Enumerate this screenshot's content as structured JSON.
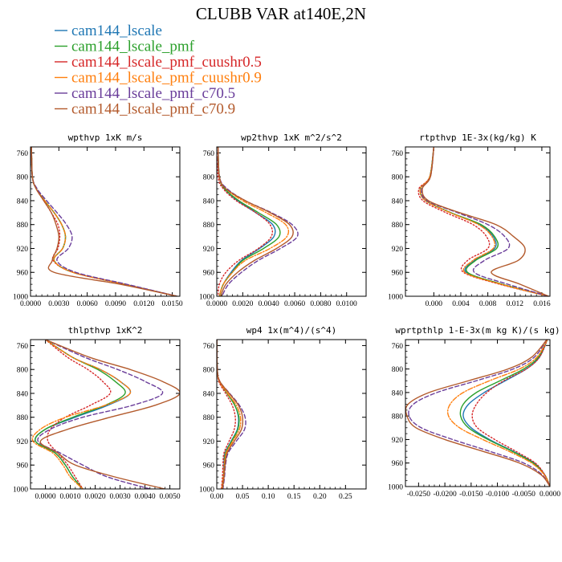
{
  "figure": {
    "title": "CLUBB VAR at140E,2N"
  },
  "legend": [
    {
      "name": "cam144_lscale",
      "color": "#1f77b4",
      "dash": "solid"
    },
    {
      "name": "cam144_lscale_pmf",
      "color": "#2ca02c",
      "dash": "solid"
    },
    {
      "name": "cam144_lscale_pmf_cuushr0.5",
      "color": "#d62728",
      "dash": "dot"
    },
    {
      "name": "cam144_lscale_pmf_cuushr0.9",
      "color": "#ff7f0e",
      "dash": "dashdot"
    },
    {
      "name": "cam144_lscale_pmf_c70.5",
      "color": "#6a3d9a",
      "dash": "dash"
    },
    {
      "name": "cam144_lscale_pmf_c70.9",
      "color": "#b35a2c",
      "dash": "solid"
    }
  ],
  "chart_data": [
    {
      "type": "line",
      "title": "wpthvp  1xK m/s",
      "xlim": [
        0,
        0.0158
      ],
      "ylim": [
        1000,
        750
      ],
      "xticks": [
        0.0,
        0.003,
        0.006,
        0.009,
        0.012,
        0.015
      ],
      "xtick_labels": [
        "0.0000",
        "0.0030",
        "0.0060",
        "0.0090",
        "0.0120",
        "0.0150"
      ],
      "yticks": [
        760,
        800,
        840,
        880,
        920,
        960,
        1000
      ],
      "y": [
        750,
        800,
        820,
        840,
        860,
        880,
        900,
        920,
        940,
        960,
        980,
        1000
      ],
      "series": [
        {
          "name": "cam144_lscale",
          "values": [
            0.0001,
            0.0002,
            0.0006,
            0.0015,
            0.0025,
            0.0033,
            0.0037,
            0.0034,
            0.0025,
            0.0045,
            0.01,
            0.0155
          ]
        },
        {
          "name": "cam144_lscale_pmf",
          "values": [
            0.0001,
            0.0002,
            0.0006,
            0.0015,
            0.0025,
            0.0033,
            0.0037,
            0.0034,
            0.0025,
            0.0045,
            0.01,
            0.0155
          ]
        },
        {
          "name": "cam144_lscale_pmf_cuushr0.5",
          "values": [
            0.0001,
            0.0002,
            0.0006,
            0.0014,
            0.0022,
            0.0029,
            0.0031,
            0.0029,
            0.0024,
            0.0045,
            0.01,
            0.0155
          ]
        },
        {
          "name": "cam144_lscale_pmf_cuushr0.9",
          "values": [
            0.0001,
            0.0002,
            0.0006,
            0.0015,
            0.0025,
            0.0033,
            0.0037,
            0.0034,
            0.0025,
            0.0045,
            0.01,
            0.0155
          ]
        },
        {
          "name": "cam144_lscale_pmf_c70.5",
          "values": [
            0.0001,
            0.0002,
            0.0007,
            0.0017,
            0.0028,
            0.0038,
            0.0044,
            0.004,
            0.0028,
            0.0048,
            0.0102,
            0.0155
          ]
        },
        {
          "name": "cam144_lscale_pmf_c70.9",
          "values": [
            0.0001,
            0.0002,
            0.0006,
            0.0014,
            0.0022,
            0.0027,
            0.003,
            0.0028,
            0.0023,
            0.0025,
            0.0095,
            0.0155
          ]
        }
      ]
    },
    {
      "type": "line",
      "title": "wp2thvp  1xK m^2/s^2",
      "xlim": [
        0,
        0.0115
      ],
      "ylim": [
        1000,
        750
      ],
      "xticks": [
        0.0,
        0.002,
        0.004,
        0.006,
        0.008,
        0.01
      ],
      "xtick_labels": [
        "0.0000",
        "0.0020",
        "0.0040",
        "0.0060",
        "0.0080",
        "0.0100"
      ],
      "yticks": [
        760,
        800,
        840,
        880,
        920,
        960,
        1000
      ],
      "y": [
        750,
        800,
        820,
        840,
        860,
        880,
        900,
        920,
        940,
        960,
        980,
        1000
      ],
      "series": [
        {
          "name": "cam144_lscale",
          "values": [
            0.0001,
            0.0002,
            0.0006,
            0.0016,
            0.003,
            0.0043,
            0.0044,
            0.0033,
            0.0019,
            0.0011,
            0.0005,
            0.0002
          ]
        },
        {
          "name": "cam144_lscale_pmf",
          "values": [
            0.0001,
            0.0002,
            0.0006,
            0.0017,
            0.0032,
            0.0046,
            0.0048,
            0.0036,
            0.002,
            0.0012,
            0.0005,
            0.0002
          ]
        },
        {
          "name": "cam144_lscale_pmf_cuushr0.5",
          "values": [
            0.0001,
            0.0001,
            0.0005,
            0.0015,
            0.003,
            0.0041,
            0.0042,
            0.0032,
            0.0017,
            0.0007,
            0.0002,
            0.0001
          ]
        },
        {
          "name": "cam144_lscale_pmf_cuushr0.9",
          "values": [
            0.0001,
            0.0002,
            0.0007,
            0.002,
            0.0038,
            0.0053,
            0.0054,
            0.0041,
            0.0022,
            0.0012,
            0.0005,
            0.0002
          ]
        },
        {
          "name": "cam144_lscale_pmf_c70.5",
          "values": [
            0.0001,
            0.0002,
            0.0008,
            0.0022,
            0.0042,
            0.0058,
            0.0062,
            0.0049,
            0.0032,
            0.0019,
            0.0009,
            0.0004
          ]
        },
        {
          "name": "cam144_lscale_pmf_c70.9",
          "values": [
            0.0001,
            0.0002,
            0.0007,
            0.0022,
            0.0041,
            0.0056,
            0.0058,
            0.0046,
            0.0029,
            0.0016,
            0.0007,
            0.0003
          ]
        }
      ]
    },
    {
      "type": "line",
      "title": "rtpthvp  1E-3x(kg/kg) K",
      "xlim": [
        -0.0042,
        0.0172
      ],
      "ylim": [
        1000,
        750
      ],
      "xticks": [
        0.0,
        0.004,
        0.008,
        0.012,
        0.016
      ],
      "xtick_labels": [
        "0.000",
        "0.004",
        "0.008",
        "0.012",
        "0.016"
      ],
      "yticks": [
        760,
        800,
        840,
        880,
        920,
        960,
        1000
      ],
      "y": [
        750,
        800,
        820,
        840,
        860,
        880,
        900,
        920,
        940,
        960,
        980,
        1000
      ],
      "series": [
        {
          "name": "cam144_lscale",
          "values": [
            0.0,
            -0.0006,
            -0.002,
            -0.0012,
            0.0025,
            0.0068,
            0.0088,
            0.009,
            0.006,
            0.0048,
            0.01,
            0.017
          ]
        },
        {
          "name": "cam144_lscale_pmf",
          "values": [
            0.0,
            -0.0006,
            -0.002,
            -0.0012,
            0.0025,
            0.007,
            0.009,
            0.0093,
            0.0062,
            0.005,
            0.0102,
            0.017
          ]
        },
        {
          "name": "cam144_lscale_pmf_cuushr0.5",
          "values": [
            0.0,
            -0.0006,
            -0.0022,
            -0.0016,
            0.0018,
            0.0058,
            0.0078,
            0.008,
            0.005,
            0.0044,
            0.0098,
            0.017
          ]
        },
        {
          "name": "cam144_lscale_pmf_cuushr0.9",
          "values": [
            0.0,
            -0.0006,
            -0.002,
            -0.0012,
            0.0024,
            0.0066,
            0.0086,
            0.0088,
            0.0058,
            0.0046,
            0.01,
            0.017
          ]
        },
        {
          "name": "cam144_lscale_pmf_c70.5",
          "values": [
            0.0,
            -0.0005,
            -0.0018,
            -0.001,
            0.0035,
            0.008,
            0.0105,
            0.011,
            0.0075,
            0.006,
            0.011,
            0.017
          ]
        },
        {
          "name": "cam144_lscale_pmf_c70.9",
          "values": [
            0.0,
            -0.0005,
            -0.0017,
            -0.0008,
            0.0038,
            0.0092,
            0.0118,
            0.0135,
            0.0125,
            0.0085,
            0.0128,
            0.017
          ]
        }
      ]
    },
    {
      "type": "line",
      "title": "thlpthvp  1xK^2",
      "xlim": [
        -0.0006,
        0.0054
      ],
      "ylim": [
        1000,
        750
      ],
      "xticks": [
        0.0,
        0.001,
        0.002,
        0.003,
        0.004,
        0.005
      ],
      "xtick_labels": [
        "0.0000",
        "0.0010",
        "0.0020",
        "0.0030",
        "0.0040",
        "0.0050"
      ],
      "yticks": [
        760,
        800,
        840,
        880,
        920,
        960,
        1000
      ],
      "y": [
        750,
        780,
        800,
        820,
        840,
        860,
        880,
        900,
        920,
        940,
        960,
        980,
        1000
      ],
      "series": [
        {
          "name": "cam144_lscale",
          "values": [
            0.0,
            0.0011,
            0.0022,
            0.003,
            0.0034,
            0.0025,
            0.0012,
            0.0,
            -0.0004,
            0.0004,
            0.0008,
            0.0011,
            0.0015
          ]
        },
        {
          "name": "cam144_lscale_pmf",
          "values": [
            0.0,
            0.0011,
            0.0021,
            0.0028,
            0.0032,
            0.0024,
            0.0011,
            0.0,
            -0.0004,
            0.0004,
            0.0008,
            0.0011,
            0.0015
          ]
        },
        {
          "name": "cam144_lscale_pmf_cuushr0.5",
          "values": [
            0.0,
            0.0009,
            0.0017,
            0.0023,
            0.0026,
            0.0018,
            0.0008,
            0.0002,
            0.0001,
            0.0005,
            0.0009,
            0.0012,
            0.0015
          ]
        },
        {
          "name": "cam144_lscale_pmf_cuushr0.9",
          "values": [
            0.0,
            0.0011,
            0.0022,
            0.003,
            0.0034,
            0.0024,
            0.0008,
            -0.0002,
            -0.0005,
            0.0003,
            0.0007,
            0.001,
            0.0015
          ]
        },
        {
          "name": "cam144_lscale_pmf_c70.5",
          "values": [
            0.0,
            0.0016,
            0.0029,
            0.004,
            0.0047,
            0.0035,
            0.0015,
            0.0002,
            -0.0003,
            0.0006,
            0.0015,
            0.0025,
            0.0042
          ]
        },
        {
          "name": "cam144_lscale_pmf_c70.9",
          "values": [
            0.0,
            0.0018,
            0.0034,
            0.0047,
            0.0054,
            0.0044,
            0.0026,
            0.0009,
            -0.0002,
            0.0005,
            0.0012,
            0.0028,
            0.0048
          ]
        }
      ]
    },
    {
      "type": "line",
      "title": "wp4  1x(m^4)/(s^4)",
      "xlim": [
        0,
        0.29
      ],
      "ylim": [
        1000,
        750
      ],
      "xticks": [
        0.0,
        0.05,
        0.1,
        0.15,
        0.2,
        0.25
      ],
      "xtick_labels": [
        "0.00",
        "0.05",
        "0.10",
        "0.15",
        "0.20",
        "0.25"
      ],
      "yticks": [
        760,
        800,
        840,
        880,
        920,
        960,
        1000
      ],
      "y": [
        750,
        800,
        820,
        840,
        860,
        880,
        900,
        920,
        940,
        960,
        980,
        1000
      ],
      "series": [
        {
          "name": "cam144_lscale",
          "values": [
            0.0,
            0.001,
            0.005,
            0.02,
            0.035,
            0.042,
            0.04,
            0.028,
            0.016,
            0.014,
            0.013,
            0.01
          ]
        },
        {
          "name": "cam144_lscale_pmf",
          "values": [
            0.0,
            0.001,
            0.005,
            0.02,
            0.035,
            0.043,
            0.041,
            0.029,
            0.017,
            0.015,
            0.013,
            0.01
          ]
        },
        {
          "name": "cam144_lscale_pmf_cuushr0.5",
          "values": [
            0.0,
            0.001,
            0.004,
            0.017,
            0.03,
            0.036,
            0.034,
            0.024,
            0.014,
            0.012,
            0.011,
            0.009
          ]
        },
        {
          "name": "cam144_lscale_pmf_cuushr0.9",
          "values": [
            0.0,
            0.001,
            0.005,
            0.021,
            0.038,
            0.046,
            0.044,
            0.031,
            0.018,
            0.015,
            0.013,
            0.01
          ]
        },
        {
          "name": "cam144_lscale_pmf_c70.5",
          "values": [
            0.0,
            0.001,
            0.006,
            0.025,
            0.044,
            0.055,
            0.054,
            0.038,
            0.022,
            0.017,
            0.015,
            0.012
          ]
        },
        {
          "name": "cam144_lscale_pmf_c70.9",
          "values": [
            0.0,
            0.001,
            0.006,
            0.024,
            0.042,
            0.05,
            0.048,
            0.034,
            0.02,
            0.016,
            0.014,
            0.011
          ]
        }
      ]
    },
    {
      "type": "line",
      "title": "wprtpthlp  1-E-3x(m kg K)/(s kg)",
      "xlim": [
        -0.0275,
        0.0
      ],
      "ylim": [
        1000,
        750
      ],
      "xticks": [
        -0.025,
        -0.02,
        -0.015,
        -0.01,
        -0.005,
        0.0
      ],
      "xtick_labels": [
        "-0.0250",
        "-0.0200",
        "-0.0150",
        "-0.0100",
        "-0.0050",
        "0.0000"
      ],
      "yticks": [
        760,
        800,
        840,
        880,
        920,
        960,
        1000
      ],
      "y": [
        750,
        780,
        800,
        820,
        840,
        860,
        880,
        900,
        920,
        940,
        960,
        980,
        1000
      ],
      "series": [
        {
          "name": "cam144_lscale",
          "values": [
            -0.0005,
            -0.002,
            -0.0045,
            -0.0085,
            -0.0125,
            -0.0155,
            -0.0165,
            -0.015,
            -0.0115,
            -0.007,
            -0.003,
            -0.001,
            0.0
          ]
        },
        {
          "name": "cam144_lscale_pmf",
          "values": [
            -0.0005,
            -0.0022,
            -0.005,
            -0.0095,
            -0.014,
            -0.0165,
            -0.017,
            -0.0155,
            -0.0118,
            -0.0072,
            -0.0032,
            -0.001,
            0.0
          ]
        },
        {
          "name": "cam144_lscale_pmf_cuushr0.5",
          "values": [
            -0.0005,
            -0.002,
            -0.0045,
            -0.0088,
            -0.012,
            -0.014,
            -0.0148,
            -0.0138,
            -0.0105,
            -0.0065,
            -0.0028,
            -0.001,
            0.0
          ]
        },
        {
          "name": "cam144_lscale_pmf_cuushr0.9",
          "values": [
            -0.0005,
            -0.0025,
            -0.0058,
            -0.0115,
            -0.0165,
            -0.019,
            -0.0193,
            -0.0172,
            -0.0128,
            -0.0078,
            -0.0035,
            -0.0011,
            0.0
          ]
        },
        {
          "name": "cam144_lscale_pmf_c70.5",
          "values": [
            -0.0006,
            -0.003,
            -0.007,
            -0.014,
            -0.0215,
            -0.026,
            -0.0268,
            -0.0245,
            -0.0185,
            -0.0115,
            -0.005,
            -0.0015,
            0.0
          ]
        },
        {
          "name": "cam144_lscale_pmf_c70.9",
          "values": [
            -0.0006,
            -0.0035,
            -0.008,
            -0.0155,
            -0.023,
            -0.027,
            -0.0272,
            -0.0255,
            -0.02,
            -0.0128,
            -0.0058,
            -0.0017,
            0.0
          ]
        }
      ]
    }
  ]
}
